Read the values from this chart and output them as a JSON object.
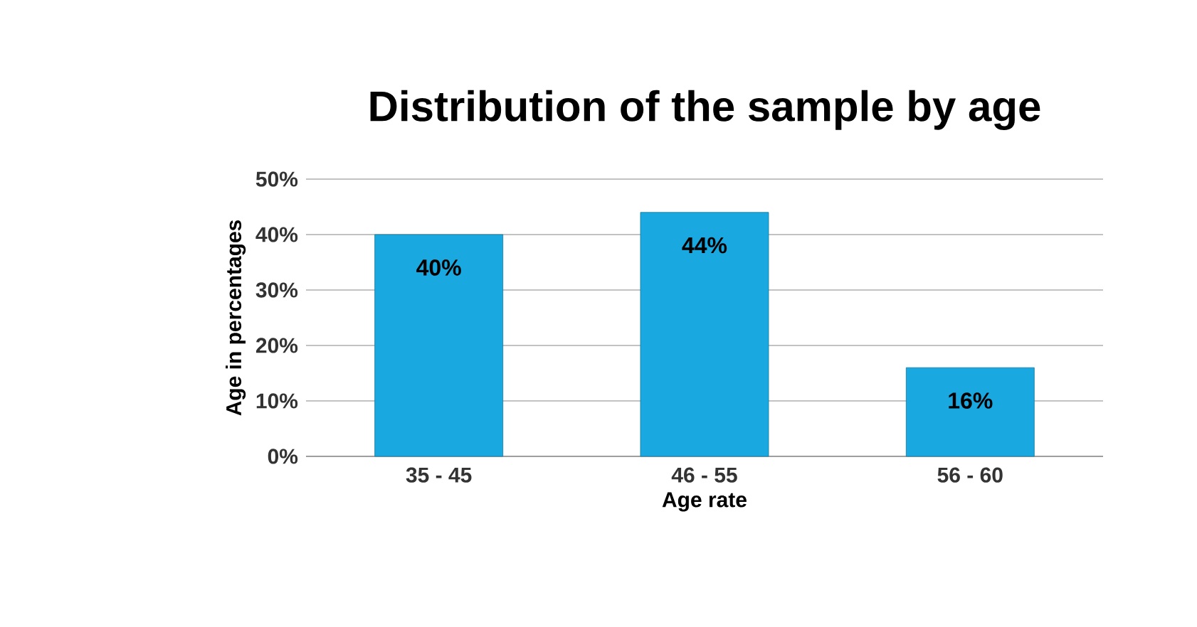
{
  "chart_data": {
    "type": "bar",
    "title": "Distribution of the sample by age",
    "xlabel": "Age rate",
    "ylabel": "Age in percentages",
    "categories": [
      "35 - 45",
      "46 - 55",
      "56 - 60"
    ],
    "values": [
      40,
      44,
      16
    ],
    "value_labels": [
      "40%",
      "44%",
      "16%"
    ],
    "color": "#1aa8e0",
    "ylim": [
      0,
      50
    ],
    "yticks": [
      {
        "value": 0,
        "label": "0%"
      },
      {
        "value": 10,
        "label": "10%"
      },
      {
        "value": 20,
        "label": "20%"
      },
      {
        "value": 30,
        "label": "30%"
      },
      {
        "value": 40,
        "label": "40%"
      },
      {
        "value": 50,
        "label": "50%"
      }
    ],
    "grid": "y"
  }
}
